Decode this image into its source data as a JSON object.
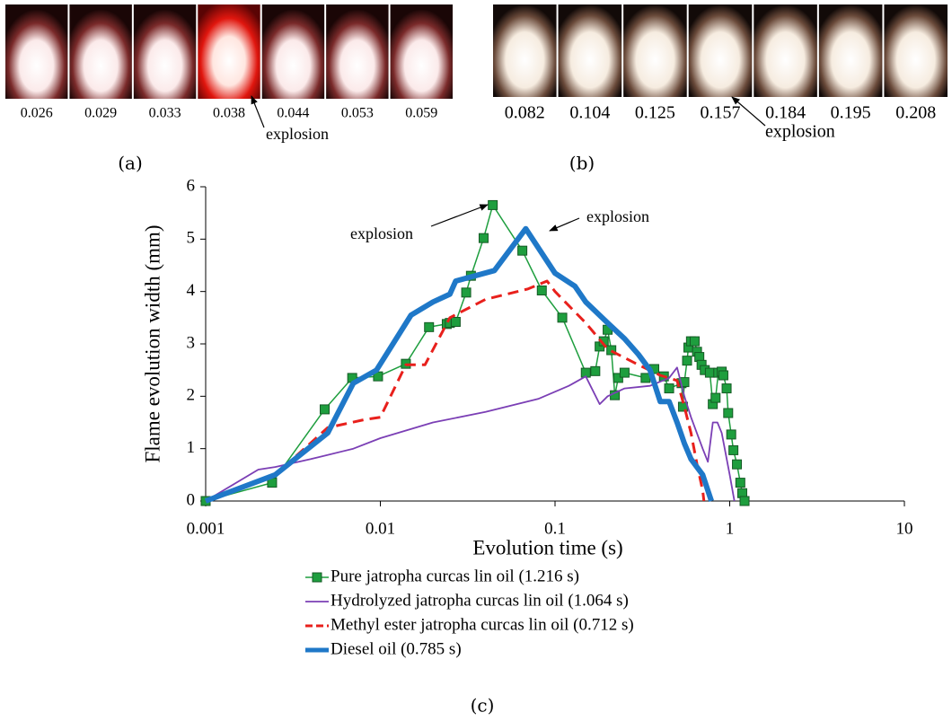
{
  "panels": {
    "a": {
      "label": "(a)",
      "times": [
        "0.026",
        "0.029",
        "0.033",
        "0.038",
        "0.044",
        "0.053",
        "0.059"
      ],
      "annotation": "explosion"
    },
    "b": {
      "label": "(b)",
      "times": [
        "0.082",
        "0.104",
        "0.125",
        "0.157",
        "0.184",
        "0.195",
        "0.208"
      ],
      "annotation": "explosion"
    },
    "c": {
      "label": "(c)"
    }
  },
  "chart_data": {
    "type": "line",
    "xlabel": "Evolution time (s)",
    "ylabel": "Flame evolution width (mm)",
    "xscale": "log",
    "xlim": [
      0.001,
      10
    ],
    "xticks": [
      0.001,
      0.01,
      0.1,
      1,
      10
    ],
    "ylim": [
      0,
      6
    ],
    "yticks": [
      0,
      1,
      2,
      3,
      4,
      5,
      6
    ],
    "annotations": [
      "explosion",
      "explosion"
    ],
    "series": [
      {
        "name": "Pure jatropha curcas lin oil (1.216 s)",
        "color": "#1e9e3e",
        "marker": "square",
        "width": 1.5,
        "x": [
          0.001,
          0.0024,
          0.0048,
          0.0069,
          0.0097,
          0.014,
          0.019,
          0.024,
          0.025,
          0.027,
          0.031,
          0.033,
          0.039,
          0.044,
          0.065,
          0.084,
          0.11,
          0.15,
          0.17,
          0.18,
          0.19,
          0.2,
          0.21,
          0.22,
          0.23,
          0.25,
          0.33,
          0.37,
          0.42,
          0.45,
          0.53,
          0.54,
          0.55,
          0.57,
          0.58,
          0.6,
          0.63,
          0.65,
          0.67,
          0.69,
          0.72,
          0.77,
          0.8,
          0.83,
          0.86,
          0.9,
          0.92,
          0.96,
          0.98,
          1.02,
          1.05,
          1.1,
          1.15,
          1.18,
          1.216
        ],
        "values": [
          0,
          0.35,
          1.75,
          2.35,
          2.38,
          2.62,
          3.32,
          3.38,
          3.4,
          3.42,
          3.98,
          4.3,
          5.02,
          5.65,
          4.78,
          4.02,
          3.5,
          2.45,
          2.48,
          2.95,
          3.05,
          3.27,
          2.88,
          2.02,
          2.35,
          2.45,
          2.35,
          2.52,
          2.38,
          2.15,
          2.25,
          1.8,
          2.27,
          2.68,
          2.93,
          3.05,
          3.05,
          2.85,
          2.75,
          2.6,
          2.5,
          2.45,
          1.85,
          1.97,
          2.45,
          2.47,
          2.4,
          2.15,
          1.68,
          1.27,
          0.97,
          0.7,
          0.35,
          0.15,
          0
        ]
      },
      {
        "name": "Hydrolyzed jatropha curcas lin oil (1.064 s)",
        "color": "#7b3fb5",
        "width": 1.8,
        "x": [
          0.001,
          0.002,
          0.0025,
          0.004,
          0.007,
          0.01,
          0.02,
          0.04,
          0.08,
          0.12,
          0.15,
          0.18,
          0.2,
          0.25,
          0.35,
          0.45,
          0.5,
          0.55,
          0.6,
          0.7,
          0.75,
          0.8,
          0.85,
          0.9,
          1.0,
          1.064
        ],
        "values": [
          0,
          0.6,
          0.65,
          0.8,
          1.0,
          1.2,
          1.5,
          1.7,
          1.95,
          2.2,
          2.38,
          1.85,
          2.0,
          2.15,
          2.2,
          2.35,
          2.55,
          2.0,
          1.6,
          1.0,
          0.75,
          1.5,
          1.5,
          1.3,
          0.5,
          0
        ]
      },
      {
        "name": "Methyl ester jatropha curcas lin oil (0.712 s)",
        "color": "#e8201c",
        "dash": true,
        "width": 3,
        "x": [
          0.001,
          0.0025,
          0.005,
          0.008,
          0.01,
          0.014,
          0.018,
          0.025,
          0.04,
          0.07,
          0.09,
          0.1,
          0.15,
          0.2,
          0.3,
          0.4,
          0.5,
          0.55,
          0.6,
          0.65,
          0.7,
          0.712
        ],
        "values": [
          0,
          0.5,
          1.4,
          1.55,
          1.6,
          2.6,
          2.6,
          3.5,
          3.85,
          4.05,
          4.2,
          4.0,
          3.4,
          2.9,
          2.6,
          2.4,
          2.3,
          1.8,
          1.3,
          0.7,
          0.2,
          0
        ]
      },
      {
        "name": "Diesel oil (0.785 s)",
        "color": "#1f78c8",
        "width": 6,
        "x": [
          0.001,
          0.0025,
          0.005,
          0.007,
          0.0095,
          0.015,
          0.02,
          0.025,
          0.027,
          0.045,
          0.068,
          0.1,
          0.13,
          0.15,
          0.2,
          0.25,
          0.3,
          0.35,
          0.4,
          0.45,
          0.5,
          0.55,
          0.6,
          0.7,
          0.75,
          0.785
        ],
        "values": [
          0,
          0.5,
          1.3,
          2.25,
          2.5,
          3.55,
          3.8,
          3.95,
          4.2,
          4.4,
          5.2,
          4.35,
          4.1,
          3.8,
          3.4,
          3.1,
          2.8,
          2.5,
          1.9,
          1.9,
          1.5,
          1.1,
          0.8,
          0.5,
          0.2,
          0
        ]
      }
    ]
  }
}
